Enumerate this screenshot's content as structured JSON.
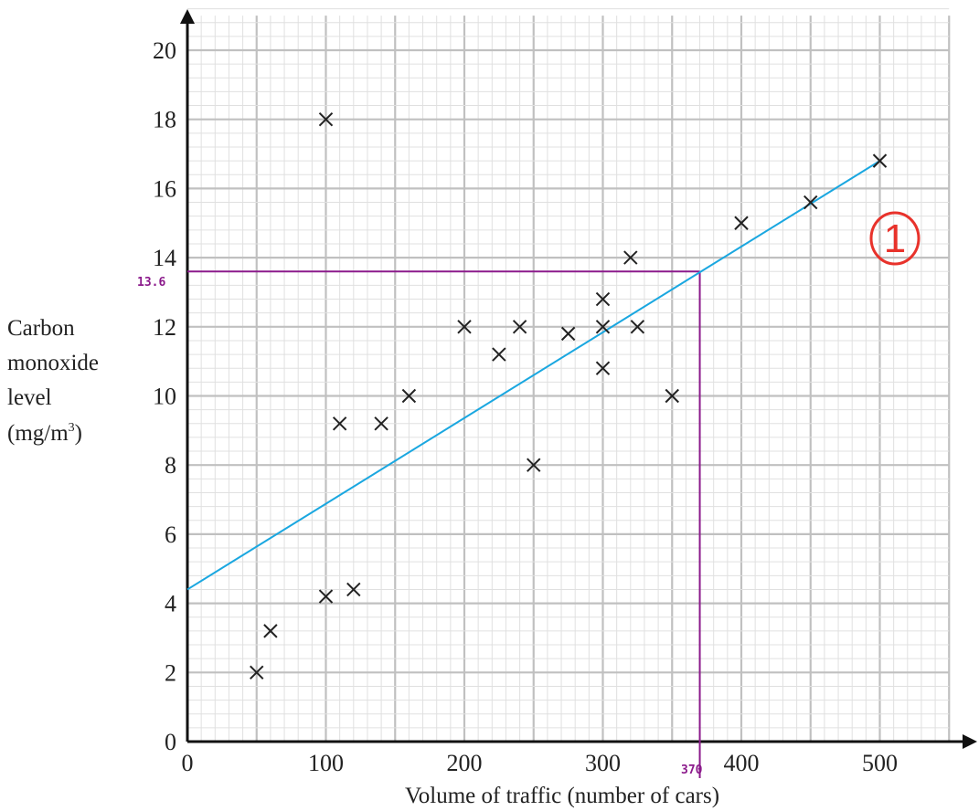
{
  "chart_data": {
    "type": "scatter",
    "ylabel": [
      "Carbon",
      "monoxide",
      "level",
      "(mg/m",
      "3",
      ")"
    ],
    "xlabel": "Volume of traffic (number of cars)",
    "xlim": [
      0,
      550
    ],
    "ylim": [
      0,
      21
    ],
    "x_ticks": [
      0,
      100,
      200,
      300,
      400,
      500
    ],
    "y_ticks": [
      0,
      2,
      4,
      6,
      8,
      10,
      12,
      14,
      16,
      18,
      20
    ],
    "grid": true,
    "points": [
      {
        "x": 50,
        "y": 2
      },
      {
        "x": 60,
        "y": 3.2
      },
      {
        "x": 100,
        "y": 4.2
      },
      {
        "x": 120,
        "y": 4.4
      },
      {
        "x": 100,
        "y": 18
      },
      {
        "x": 110,
        "y": 9.2
      },
      {
        "x": 140,
        "y": 9.2
      },
      {
        "x": 160,
        "y": 10
      },
      {
        "x": 200,
        "y": 12
      },
      {
        "x": 225,
        "y": 11.2
      },
      {
        "x": 240,
        "y": 12
      },
      {
        "x": 250,
        "y": 8
      },
      {
        "x": 275,
        "y": 11.8
      },
      {
        "x": 300,
        "y": 12.8
      },
      {
        "x": 300,
        "y": 12
      },
      {
        "x": 300,
        "y": 10.8
      },
      {
        "x": 320,
        "y": 14
      },
      {
        "x": 325,
        "y": 12
      },
      {
        "x": 350,
        "y": 10
      },
      {
        "x": 400,
        "y": 15
      },
      {
        "x": 450,
        "y": 15.6
      },
      {
        "x": 500,
        "y": 16.8
      }
    ],
    "best_fit_line": {
      "x": [
        0,
        500
      ],
      "y": [
        4.4,
        16.8
      ],
      "color": "#1aa7e0"
    },
    "reading": {
      "x": 370,
      "y": 13.6,
      "x_label": "370",
      "y_label": "13.6",
      "color": "#8b1a8b"
    },
    "annotations": [
      "1"
    ]
  },
  "colors": {
    "grid_major": "#c0c0c0",
    "grid_minor": "#e0e0e0",
    "axis": "#111111",
    "point": "#222222",
    "fit_line": "#1aa7e0",
    "reading": "#8b1a8b",
    "mark": "#e8322b"
  }
}
